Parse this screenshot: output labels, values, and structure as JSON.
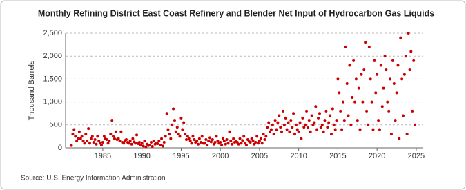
{
  "chart_data": {
    "type": "scatter",
    "title": "Monthly Refining District East Coast Refinery and Blender Net Input of Hydrocarbon Gas Liquids",
    "y_label": "Thousand Barrels",
    "source": "Source: U.S. Energy Information Administration",
    "color": "#cc0000",
    "xlim": [
      1980.25,
      2025.8
    ],
    "ylim": [
      0,
      2500
    ],
    "xticks": [
      1985,
      1990,
      1995,
      2000,
      2005,
      2010,
      2015,
      2020,
      2025
    ],
    "yticks": [
      0,
      500,
      {
        "value": 1000,
        "label": "1,000"
      },
      {
        "value": 1500,
        "label": "1,500"
      },
      {
        "value": 2000,
        "label": "2,000"
      },
      {
        "value": 2500,
        "label": "2,500"
      }
    ],
    "grid": true,
    "x": [
      1981,
      1981.17,
      1981.33,
      1981.5,
      1981.67,
      1981.83,
      1982,
      1982.17,
      1982.33,
      1982.5,
      1982.67,
      1982.83,
      1983,
      1983.17,
      1983.33,
      1983.5,
      1983.67,
      1983.83,
      1984,
      1984.17,
      1984.33,
      1984.5,
      1984.67,
      1984.83,
      1985,
      1985.17,
      1985.33,
      1985.5,
      1985.67,
      1985.83,
      1986,
      1986.17,
      1986.33,
      1986.5,
      1986.67,
      1986.83,
      1987,
      1987.17,
      1987.33,
      1987.5,
      1987.67,
      1987.83,
      1988,
      1988.17,
      1988.33,
      1988.5,
      1988.67,
      1988.83,
      1989,
      1989.17,
      1989.33,
      1989.5,
      1989.67,
      1989.83,
      1990,
      1990.17,
      1990.33,
      1990.5,
      1990.67,
      1990.83,
      1991,
      1991.17,
      1991.33,
      1991.5,
      1991.67,
      1991.83,
      1992,
      1992.17,
      1992.33,
      1992.5,
      1992.67,
      1992.83,
      1993,
      1993.17,
      1993.33,
      1993.5,
      1993.67,
      1993.83,
      1994,
      1994.17,
      1994.33,
      1994.5,
      1994.67,
      1994.83,
      1995,
      1995.17,
      1995.33,
      1995.5,
      1995.67,
      1995.83,
      1996,
      1996.17,
      1996.33,
      1996.5,
      1996.67,
      1996.83,
      1997,
      1997.17,
      1997.33,
      1997.5,
      1997.67,
      1997.83,
      1998,
      1998.17,
      1998.33,
      1998.5,
      1998.67,
      1998.83,
      1999,
      1999.17,
      1999.33,
      1999.5,
      1999.67,
      1999.83,
      2000,
      2000.17,
      2000.33,
      2000.5,
      2000.67,
      2000.83,
      2001,
      2001.17,
      2001.33,
      2001.5,
      2001.67,
      2001.83,
      2002,
      2002.17,
      2002.33,
      2002.5,
      2002.67,
      2002.83,
      2003,
      2003.17,
      2003.33,
      2003.5,
      2003.67,
      2003.83,
      2004,
      2004.17,
      2004.33,
      2004.5,
      2004.67,
      2004.83,
      2005,
      2005.17,
      2005.33,
      2005.5,
      2005.67,
      2005.83,
      2006,
      2006.17,
      2006.33,
      2006.5,
      2006.67,
      2006.83,
      2007,
      2007.17,
      2007.33,
      2007.5,
      2007.67,
      2007.83,
      2008,
      2008.17,
      2008.33,
      2008.5,
      2008.67,
      2008.83,
      2009,
      2009.17,
      2009.33,
      2009.5,
      2009.67,
      2009.83,
      2010,
      2010.17,
      2010.33,
      2010.5,
      2010.67,
      2010.83,
      2011,
      2011.17,
      2011.33,
      2011.5,
      2011.67,
      2011.83,
      2012,
      2012.17,
      2012.33,
      2012.5,
      2012.67,
      2012.83,
      2013,
      2013.17,
      2013.33,
      2013.5,
      2013.67,
      2013.83,
      2014,
      2014.17,
      2014.33,
      2014.5,
      2014.67,
      2014.83,
      2015,
      2015.17,
      2015.33,
      2015.5,
      2015.67,
      2015.83,
      2016,
      2016.17,
      2016.33,
      2016.5,
      2016.67,
      2016.83,
      2017,
      2017.17,
      2017.33,
      2017.5,
      2017.67,
      2017.83,
      2018,
      2018.17,
      2018.33,
      2018.5,
      2018.67,
      2018.83,
      2019,
      2019.17,
      2019.33,
      2019.5,
      2019.67,
      2019.83,
      2020,
      2020.17,
      2020.33,
      2020.5,
      2020.67,
      2020.83,
      2021,
      2021.17,
      2021.33,
      2021.5,
      2021.67,
      2021.83,
      2022,
      2022.17,
      2022.33,
      2022.5,
      2022.67,
      2022.83,
      2023,
      2023.17,
      2023.33,
      2023.5,
      2023.67,
      2023.83,
      2024,
      2024.17,
      2024.33,
      2024.5,
      2024.67,
      2024.83
    ],
    "values": [
      50,
      300,
      400,
      250,
      150,
      200,
      350,
      200,
      250,
      150,
      100,
      300,
      150,
      420,
      100,
      200,
      250,
      120,
      180,
      80,
      250,
      150,
      100,
      60,
      120,
      250,
      200,
      180,
      100,
      150,
      300,
      600,
      250,
      200,
      350,
      180,
      200,
      150,
      350,
      120,
      100,
      160,
      180,
      120,
      100,
      150,
      80,
      200,
      130,
      100,
      280,
      90,
      120,
      60,
      100,
      40,
      150,
      20,
      80,
      50,
      60,
      120,
      30,
      150,
      80,
      100,
      90,
      150,
      60,
      200,
      40,
      120,
      250,
      750,
      400,
      300,
      200,
      500,
      850,
      600,
      350,
      450,
      300,
      250,
      650,
      400,
      550,
      300,
      180,
      250,
      200,
      150,
      100,
      250,
      180,
      120,
      150,
      80,
      200,
      120,
      250,
      100,
      100,
      180,
      60,
      150,
      220,
      130,
      180,
      80,
      120,
      250,
      150,
      100,
      120,
      60,
      200,
      150,
      80,
      180,
      100,
      350,
      150,
      80,
      200,
      120,
      150,
      120,
      80,
      200,
      100,
      160,
      250,
      100,
      60,
      180,
      140,
      120,
      200,
      150,
      80,
      120,
      250,
      100,
      150,
      200,
      100,
      300,
      180,
      250,
      450,
      550,
      350,
      400,
      500,
      300,
      600,
      400,
      550,
      700,
      450,
      350,
      800,
      500,
      650,
      400,
      550,
      350,
      600,
      450,
      750,
      300,
      500,
      400,
      350,
      550,
      200,
      650,
      450,
      500,
      800,
      450,
      600,
      350,
      700,
      500,
      550,
      900,
      400,
      650,
      750,
      450,
      500,
      350,
      600,
      800,
      450,
      550,
      700,
      300,
      850,
      500,
      400,
      600,
      1500,
      1200,
      800,
      400,
      1000,
      600,
      2200,
      1400,
      700,
      1800,
      500,
      1100,
      1900,
      1000,
      1500,
      600,
      1300,
      400,
      1600,
      1000,
      1700,
      2300,
      800,
      500,
      2200,
      1500,
      1000,
      400,
      1900,
      1200,
      1600,
      600,
      400,
      1800,
      900,
      1300,
      2000,
      1700,
      1000,
      800,
      1500,
      300,
      1900,
      1400,
      600,
      1200,
      1800,
      200,
      2400,
      1500,
      700,
      1600,
      2000,
      300,
      2500,
      1700,
      2100,
      800,
      1900,
      500
    ]
  }
}
